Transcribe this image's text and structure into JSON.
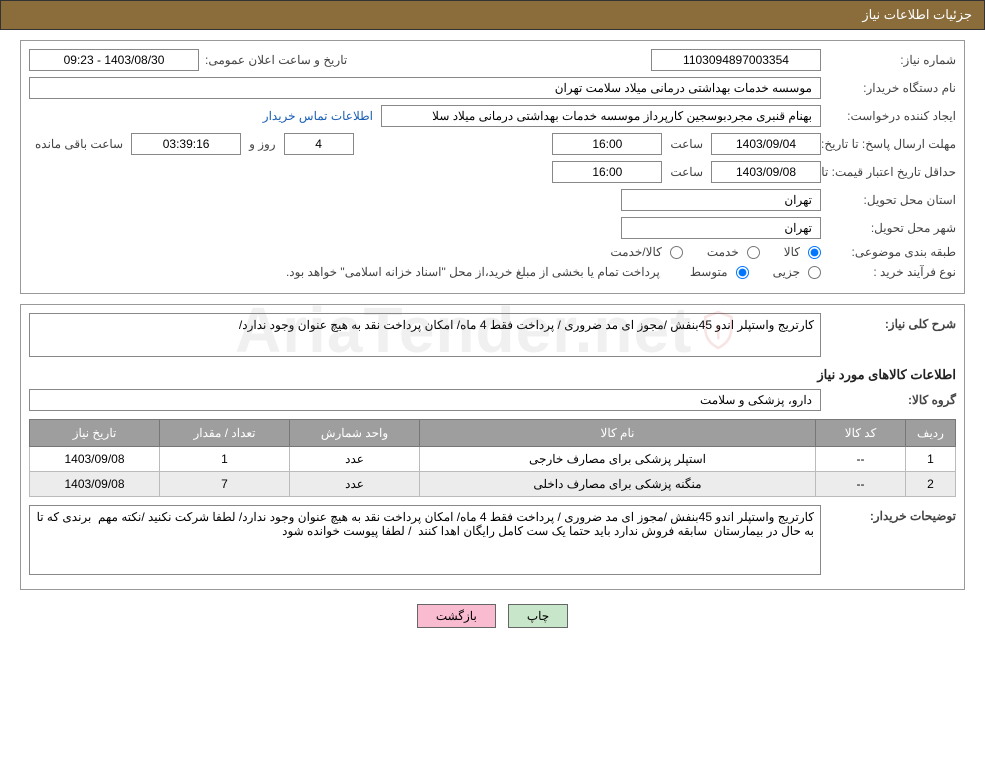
{
  "title_bar": "جزئیات اطلاعات نیاز",
  "labels": {
    "need_no": "شماره نیاز:",
    "announce_datetime": "تاریخ و ساعت اعلان عمومی:",
    "buyer_org": "نام دستگاه خریدار:",
    "request_creator": "ایجاد کننده درخواست:",
    "contact_link": "اطلاعات تماس خریدار",
    "reply_deadline": "مهلت ارسال پاسخ:",
    "until_date": "تا تاریخ:",
    "time": "ساعت",
    "days_and": "روز و",
    "time_remaining": "ساعت باقی مانده",
    "min_price_validity": "حداقل تاریخ اعتبار قیمت:",
    "delivery_province": "استان محل تحویل:",
    "delivery_city": "شهر محل تحویل:",
    "subject_class": "طبقه بندی موضوعی:",
    "goods": "کالا",
    "service": "خدمت",
    "goods_service": "کالا/خدمت",
    "purchase_process": "نوع فرآیند خرید :",
    "partial": "جزیی",
    "medium": "متوسط",
    "payment_note": "پرداخت تمام یا بخشی از مبلغ خرید،از محل \"اسناد خزانه اسلامی\" خواهد بود.",
    "need_summary": "شرح کلی نیاز:",
    "items_info_heading": "اطلاعات کالاهای مورد نیاز",
    "goods_group": "گروه کالا:",
    "buyer_notes": "توضیحات خریدار:"
  },
  "fields": {
    "need_no": "1103094897003354",
    "announce_datetime": "1403/08/30 - 09:23",
    "buyer_org": "موسسه خدمات بهداشتی درمانی میلاد سلامت تهران",
    "request_creator": "بهنام قنبری مجردبوسجین کارپرداز موسسه خدمات بهداشتی درمانی میلاد سلا",
    "reply_until_date": "1403/09/04",
    "reply_time": "16:00",
    "days_remaining": "4",
    "countdown": "03:39:16",
    "price_valid_until_date": "1403/09/08",
    "price_valid_time": "16:00",
    "delivery_province": "تهران",
    "delivery_city": "تهران",
    "need_summary_text": "کارتریج واستپلر اندو 45بنفش /مجوز ای مد ضروری / پرداخت فقط 4 ماه/ امکان پرداخت نقد به هیچ عنوان وجود ندارد/",
    "goods_group": "دارو، پزشکی و سلامت",
    "buyer_notes_text": "کارتریج واستپلر اندو 45بنفش /مجوز ای مد ضروری / پرداخت فقط 4 ماه/ امکان پرداخت نقد به هیچ عنوان وجود ندارد/ لطفا شرکت نکنید /نکته مهم  برندی که تا به حال در بیمارستان  سابقه فروش ندارد باید حتما یک ست کامل رایگان اهدا کنند  / لطفا پیوست خوانده شود"
  },
  "subject_selected": "goods",
  "process_selected": "medium",
  "table": {
    "headers": {
      "idx": "ردیف",
      "code": "کد کالا",
      "name": "نام کالا",
      "unit": "واحد شمارش",
      "qty": "تعداد / مقدار",
      "need_date": "تاریخ نیاز"
    },
    "rows": [
      {
        "idx": "1",
        "code": "--",
        "name": "استپلر پزشکی برای مصارف خارجی",
        "unit": "عدد",
        "qty": "1",
        "need_date": "1403/09/08"
      },
      {
        "idx": "2",
        "code": "--",
        "name": "منگنه پزشکی برای مصارف داخلی",
        "unit": "عدد",
        "qty": "7",
        "need_date": "1403/09/08"
      }
    ]
  },
  "buttons": {
    "print": "چاپ",
    "back": "بازگشت"
  },
  "watermark": {
    "text": "AriaTender.net",
    "shield_color": "#c62828"
  },
  "colors": {
    "title_bar_bg": "#8a6d3b",
    "title_bar_fg": "#ffffff",
    "table_header_bg": "#9e9e9e",
    "table_header_fg": "#ffffff",
    "row_alt_bg": "#ececec",
    "link_color": "#1a5fb4",
    "btn_print_bg": "#c8e6c9",
    "btn_back_bg": "#f8bbd0"
  }
}
